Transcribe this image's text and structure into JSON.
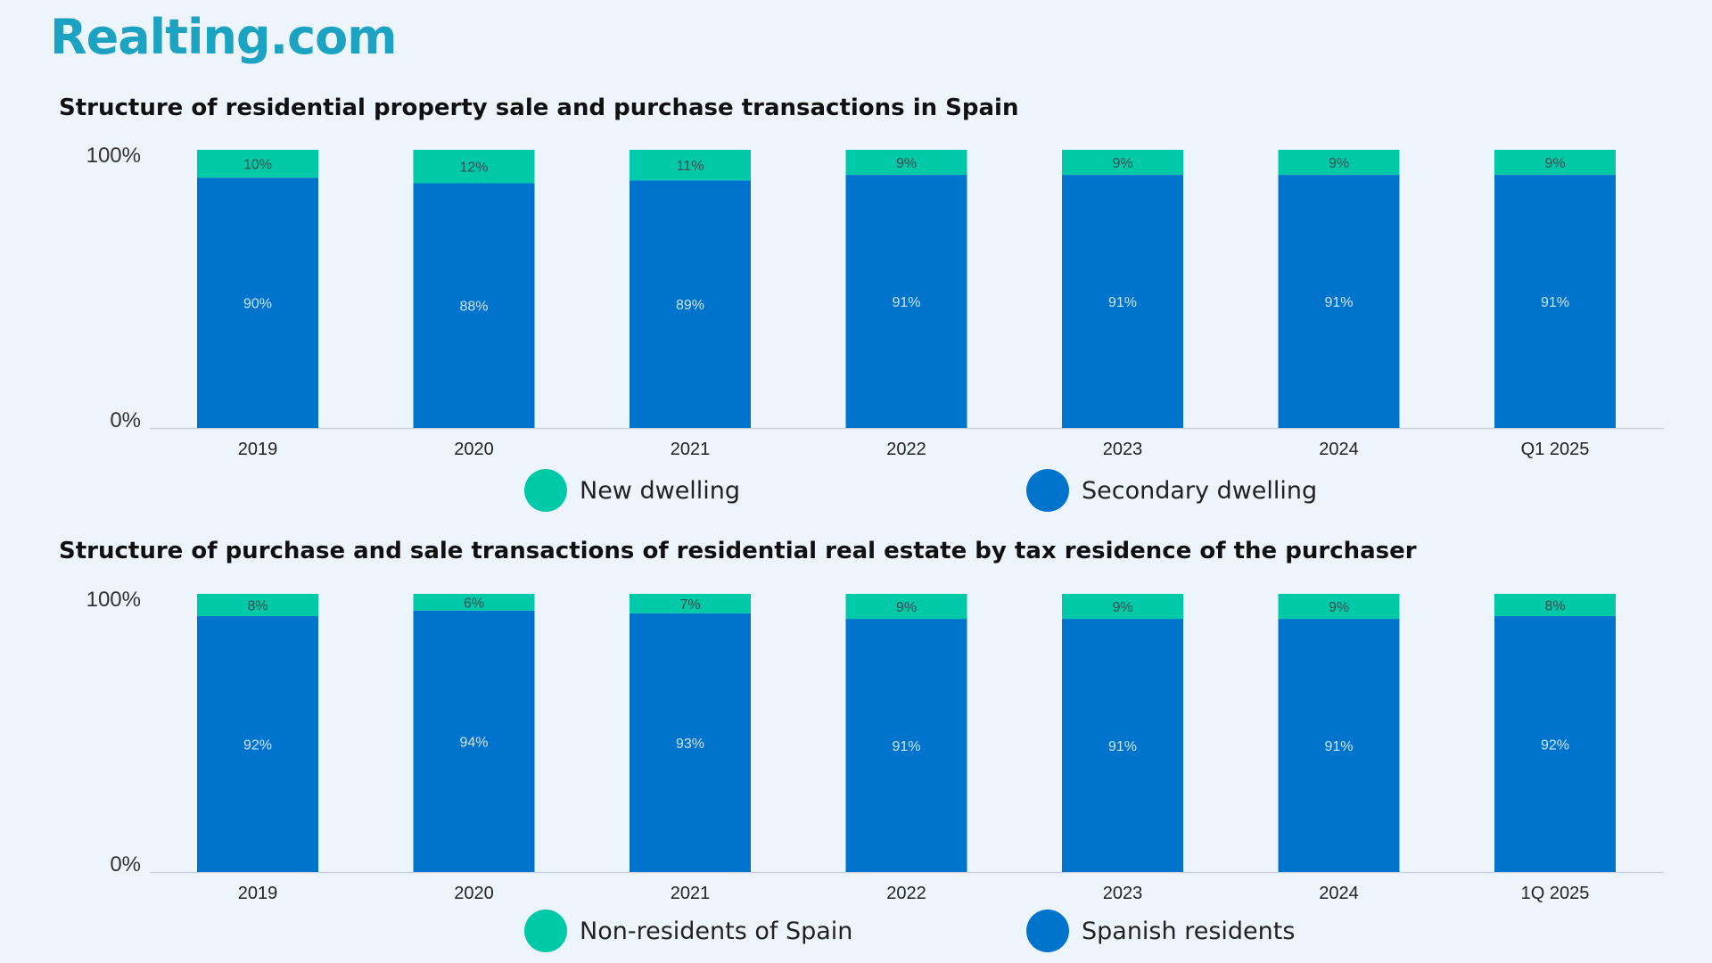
{
  "brand": {
    "logo_text": "Realting.com",
    "color": "#1ba3c1"
  },
  "colors": {
    "top_series": "#00c9a7",
    "bottom_series": "#0074cc"
  },
  "chart_data": [
    {
      "type": "bar",
      "stacked": true,
      "title": "Structure of residential property sale and purchase transactions in Spain",
      "categories": [
        "2019",
        "2020",
        "2021",
        "2022",
        "2023",
        "2024",
        "Q1 2025"
      ],
      "y_tick_labels": [
        "100%",
        "0%"
      ],
      "ylim": [
        0,
        100
      ],
      "series": [
        {
          "name": "Secondary dwelling",
          "color": "#0074cc",
          "values": [
            90,
            88,
            89,
            91,
            91,
            91,
            91
          ],
          "labels": [
            "90%",
            "88%",
            "89%",
            "91%",
            "91%",
            "91%",
            "91%"
          ]
        },
        {
          "name": "New dwelling",
          "color": "#00c9a7",
          "values": [
            10,
            12,
            11,
            9,
            9,
            9,
            9
          ],
          "labels": [
            "10%",
            "12%",
            "11%",
            "9%",
            "9%",
            "9%",
            "9%"
          ]
        }
      ],
      "legend": [
        "New dwelling",
        "Secondary dwelling"
      ]
    },
    {
      "type": "bar",
      "stacked": true,
      "title": "Structure of purchase and sale transactions of residential real estate by tax residence of the purchaser",
      "categories": [
        "2019",
        "2020",
        "2021",
        "2022",
        "2023",
        "2024",
        "1Q 2025"
      ],
      "y_tick_labels": [
        "100%",
        "0%"
      ],
      "ylim": [
        0,
        100
      ],
      "series": [
        {
          "name": "Spanish residents",
          "color": "#0074cc",
          "values": [
            92,
            94,
            93,
            91,
            91,
            91,
            92
          ],
          "labels": [
            "92%",
            "94%",
            "93%",
            "91%",
            "91%",
            "91%",
            "92%"
          ]
        },
        {
          "name": "Non-residents of Spain",
          "color": "#00c9a7",
          "values": [
            8,
            6,
            7,
            9,
            9,
            9,
            8
          ],
          "labels": [
            "8%",
            "6%",
            "7%",
            "9%",
            "9%",
            "9%",
            "8%"
          ]
        }
      ],
      "legend": [
        "Non-residents of Spain",
        "Spanish residents"
      ]
    }
  ]
}
